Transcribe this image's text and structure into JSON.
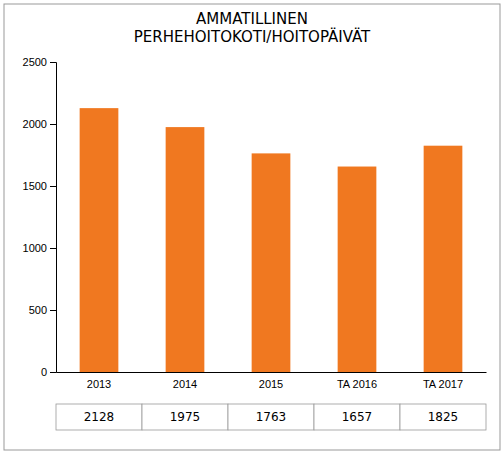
{
  "chart_data": {
    "type": "bar",
    "title": "AMMATILLINEN\nPERHEHOITOKOTI/HOITOPÄIVÄT",
    "categories": [
      "2013",
      "2014",
      "2015",
      "TA 2016",
      "TA 2017"
    ],
    "values": [
      2128,
      1975,
      1763,
      1657,
      1825
    ],
    "color": "#F07820",
    "ylim": [
      0,
      2500
    ],
    "yticks": [
      0,
      500,
      1000,
      1500,
      2000,
      2500
    ],
    "grid": false
  }
}
